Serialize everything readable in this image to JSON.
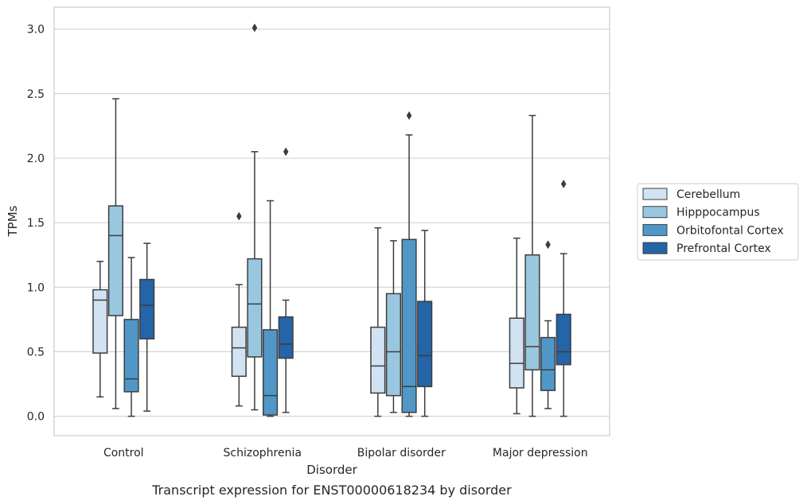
{
  "chart_data": {
    "type": "box",
    "xlabel": "Disorder",
    "ylabel": "TPMs",
    "caption": "Transcript expression for ENST00000618234 by disorder",
    "ylim": [
      -0.15,
      3.17
    ],
    "yticks": [
      0.0,
      0.5,
      1.0,
      1.5,
      2.0,
      2.5,
      3.0
    ],
    "ytick_labels": [
      "0.0",
      "0.5",
      "1.0",
      "1.5",
      "2.0",
      "2.5",
      "3.0"
    ],
    "grid": "horizontal",
    "legend_position": "right",
    "categories": [
      "Control",
      "Schizophrenia",
      "Bipolar disorder",
      "Major depression"
    ],
    "series": [
      {
        "name": "Cerebellum",
        "color": "#d1e2f2",
        "boxes": [
          {
            "whislo": 0.15,
            "q1": 0.49,
            "med": 0.9,
            "q3": 0.98,
            "whishi": 1.2,
            "fliers": []
          },
          {
            "whislo": 0.08,
            "q1": 0.31,
            "med": 0.53,
            "q3": 0.69,
            "whishi": 1.02,
            "fliers": [
              1.55
            ]
          },
          {
            "whislo": 0.0,
            "q1": 0.18,
            "med": 0.39,
            "q3": 0.69,
            "whishi": 1.46,
            "fliers": []
          },
          {
            "whislo": 0.02,
            "q1": 0.22,
            "med": 0.41,
            "q3": 0.76,
            "whishi": 1.38,
            "fliers": []
          }
        ]
      },
      {
        "name": "Hipppocampus",
        "color": "#9ac7e0",
        "boxes": [
          {
            "whislo": 0.06,
            "q1": 0.78,
            "med": 1.4,
            "q3": 1.63,
            "whishi": 2.46,
            "fliers": []
          },
          {
            "whislo": 0.05,
            "q1": 0.46,
            "med": 0.87,
            "q3": 1.22,
            "whishi": 2.05,
            "fliers": [
              3.01
            ]
          },
          {
            "whislo": 0.03,
            "q1": 0.16,
            "med": 0.5,
            "q3": 0.95,
            "whishi": 1.36,
            "fliers": []
          },
          {
            "whislo": 0.0,
            "q1": 0.36,
            "med": 0.54,
            "q3": 1.25,
            "whishi": 2.33,
            "fliers": []
          }
        ]
      },
      {
        "name": "Orbitofontal Cortex",
        "color": "#5097c8",
        "boxes": [
          {
            "whislo": 0.0,
            "q1": 0.19,
            "med": 0.29,
            "q3": 0.75,
            "whishi": 1.23,
            "fliers": []
          },
          {
            "whislo": 0.0,
            "q1": 0.01,
            "med": 0.16,
            "q3": 0.67,
            "whishi": 1.67,
            "fliers": []
          },
          {
            "whislo": 0.0,
            "q1": 0.03,
            "med": 0.23,
            "q3": 1.37,
            "whishi": 2.18,
            "fliers": [
              2.33
            ]
          },
          {
            "whislo": 0.06,
            "q1": 0.2,
            "med": 0.36,
            "q3": 0.61,
            "whishi": 0.74,
            "fliers": [
              1.33
            ]
          }
        ]
      },
      {
        "name": "Prefrontal Cortex",
        "color": "#2464a8",
        "boxes": [
          {
            "whislo": 0.04,
            "q1": 0.6,
            "med": 0.86,
            "q3": 1.06,
            "whishi": 1.34,
            "fliers": []
          },
          {
            "whislo": 0.03,
            "q1": 0.45,
            "med": 0.56,
            "q3": 0.77,
            "whishi": 0.9,
            "fliers": [
              2.05
            ]
          },
          {
            "whislo": 0.0,
            "q1": 0.23,
            "med": 0.47,
            "q3": 0.89,
            "whishi": 1.44,
            "fliers": []
          },
          {
            "whislo": 0.0,
            "q1": 0.4,
            "med": 0.5,
            "q3": 0.79,
            "whishi": 1.26,
            "fliers": [
              1.8
            ]
          }
        ]
      }
    ]
  }
}
